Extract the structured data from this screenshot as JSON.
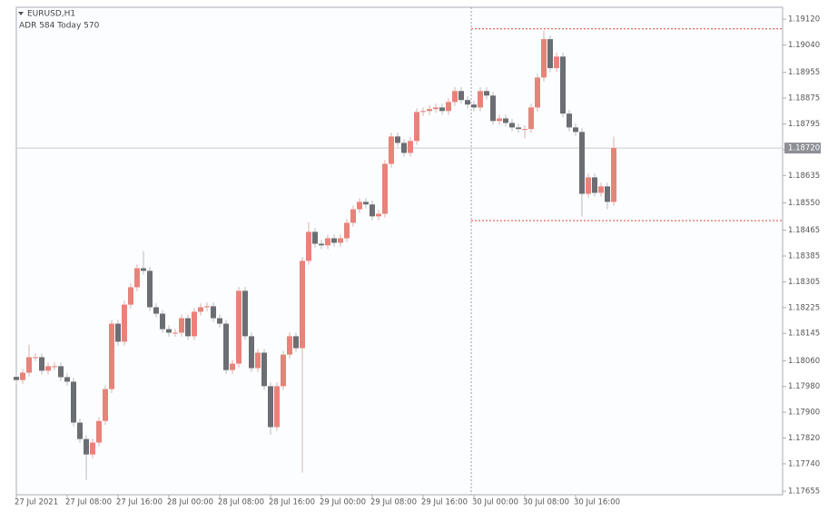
{
  "chart_data": {
    "type": "candlestick",
    "title": "EURUSD,H1",
    "subtitle": "ADR 584  Today 570",
    "categories": [
      "27 Jul 2021",
      null,
      null,
      null,
      null,
      null,
      null,
      null,
      "27 Jul 08:00",
      null,
      null,
      null,
      null,
      null,
      null,
      null,
      "27 Jul 16:00",
      null,
      null,
      null,
      null,
      null,
      null,
      null,
      "28 Jul 00:00",
      null,
      null,
      null,
      null,
      null,
      null,
      null,
      "28 Jul 08:00",
      null,
      null,
      null,
      null,
      null,
      null,
      null,
      "28 Jul 16:00",
      null,
      null,
      null,
      null,
      null,
      null,
      null,
      "29 Jul 00:00",
      null,
      null,
      null,
      null,
      null,
      null,
      null,
      "29 Jul 08:00",
      null,
      null,
      null,
      null,
      null,
      null,
      null,
      "29 Jul 16:00",
      null,
      null,
      null,
      null,
      null,
      null,
      null,
      "30 Jul 00:00",
      null,
      null,
      null,
      null,
      null,
      null,
      null,
      "30 Jul 08:00",
      null,
      null,
      null,
      null,
      null,
      null,
      null,
      "30 Jul 16:00",
      null,
      null,
      null,
      null,
      null,
      null
    ],
    "open": [
      1.1801,
      1.18,
      1.18023,
      1.18071,
      1.18071,
      1.18029,
      1.18043,
      1.18043,
      1.18009,
      1.17995,
      1.17868,
      1.17817,
      1.17769,
      1.17806,
      1.17873,
      1.17972,
      1.18175,
      1.18119,
      1.18234,
      1.18288,
      1.18347,
      1.18339,
      1.18226,
      1.18206,
      1.18158,
      1.18147,
      1.18147,
      1.18192,
      1.18136,
      1.18212,
      1.18226,
      1.18229,
      1.18192,
      1.18175,
      1.18031,
      1.18051,
      1.18277,
      1.18136,
      1.18037,
      1.18085,
      1.17981,
      1.17854,
      1.17981,
      1.18079,
      1.18136,
      1.18099,
      1.1837,
      1.1846,
      1.18423,
      1.18418,
      1.1844,
      1.18426,
      1.1844,
      1.18488,
      1.1853,
      1.18553,
      1.18545,
      1.18508,
      1.18516,
      1.18671,
      1.18756,
      1.18736,
      1.18705,
      1.18742,
      1.18832,
      1.18835,
      1.18841,
      1.18846,
      1.18835,
      1.18863,
      1.18897,
      1.18869,
      1.18855,
      1.18846,
      1.18897,
      1.18883,
      1.18804,
      1.18812,
      1.18798,
      1.18784,
      1.18779,
      1.18779,
      1.18846,
      1.18939,
      1.19058,
      1.18968,
      1.19004,
      1.18827,
      1.18784,
      1.1877,
      1.18578,
      1.18629,
      1.18581,
      1.18601,
      1.18553
    ],
    "high": [
      1.18022,
      1.18035,
      1.1811,
      1.18083,
      1.18083,
      1.18055,
      1.18055,
      1.18055,
      1.18021,
      1.18007,
      1.1788,
      1.17829,
      1.17818,
      1.17885,
      1.17984,
      1.18187,
      1.18187,
      1.18246,
      1.183,
      1.18359,
      1.184,
      1.18351,
      1.18238,
      1.18218,
      1.1817,
      1.18159,
      1.18204,
      1.18204,
      1.18224,
      1.18238,
      1.18241,
      1.18241,
      1.18204,
      1.18187,
      1.18063,
      1.18289,
      1.18289,
      1.18148,
      1.18097,
      1.18097,
      1.17993,
      1.17993,
      1.18091,
      1.18148,
      1.18148,
      1.18382,
      1.1849,
      1.18472,
      1.18435,
      1.18452,
      1.18452,
      1.18452,
      1.185,
      1.18542,
      1.18565,
      1.18565,
      1.18557,
      1.18528,
      1.18683,
      1.18768,
      1.18768,
      1.18748,
      1.18754,
      1.18844,
      1.18847,
      1.18853,
      1.18858,
      1.18858,
      1.18875,
      1.18909,
      1.18909,
      1.18881,
      1.18867,
      1.18909,
      1.18909,
      1.18895,
      1.18824,
      1.18824,
      1.1881,
      1.18796,
      1.18791,
      1.18858,
      1.18951,
      1.19085,
      1.1907,
      1.19016,
      1.19016,
      1.18839,
      1.18796,
      1.18782,
      1.18641,
      1.18641,
      1.18613,
      1.18613,
      1.18756
    ],
    "low": [
      1.17988,
      1.17988,
      1.18011,
      1.18059,
      1.18017,
      1.18017,
      1.18031,
      1.17997,
      1.17983,
      1.17856,
      1.17805,
      1.1769,
      1.17757,
      1.17794,
      1.17861,
      1.1796,
      1.18107,
      1.18107,
      1.18222,
      1.18276,
      1.18327,
      1.18214,
      1.18194,
      1.18146,
      1.18135,
      1.18135,
      1.18135,
      1.18124,
      1.18124,
      1.182,
      1.18214,
      1.1818,
      1.18163,
      1.18019,
      1.18019,
      1.18039,
      1.18124,
      1.18025,
      1.18025,
      1.17969,
      1.1783,
      1.17842,
      1.17969,
      1.18067,
      1.18087,
      1.17713,
      1.18358,
      1.18411,
      1.18406,
      1.18406,
      1.18414,
      1.18414,
      1.18428,
      1.18476,
      1.18518,
      1.18533,
      1.18496,
      1.18496,
      1.18504,
      1.18659,
      1.18724,
      1.18693,
      1.18693,
      1.1873,
      1.1882,
      1.18823,
      1.18829,
      1.18823,
      1.18823,
      1.18851,
      1.18857,
      1.18843,
      1.18834,
      1.18834,
      1.18871,
      1.18792,
      1.18792,
      1.18786,
      1.18772,
      1.18767,
      1.1875,
      1.18767,
      1.18834,
      1.18927,
      1.18956,
      1.18956,
      1.18815,
      1.18772,
      1.18758,
      1.18508,
      1.18566,
      1.18569,
      1.18569,
      1.1853,
      1.18541
    ],
    "close": [
      1.18,
      1.18023,
      1.18071,
      1.18071,
      1.18029,
      1.18043,
      1.18043,
      1.18009,
      1.17995,
      1.17868,
      1.17817,
      1.17769,
      1.17806,
      1.17873,
      1.17972,
      1.18175,
      1.18119,
      1.18234,
      1.18288,
      1.18347,
      1.18339,
      1.18226,
      1.18206,
      1.18158,
      1.18147,
      1.18147,
      1.18192,
      1.18136,
      1.18212,
      1.18226,
      1.18229,
      1.18192,
      1.18175,
      1.18031,
      1.18051,
      1.18277,
      1.18136,
      1.18037,
      1.18085,
      1.17981,
      1.17854,
      1.17981,
      1.18079,
      1.18136,
      1.18099,
      1.1837,
      1.1846,
      1.18423,
      1.18418,
      1.1844,
      1.18426,
      1.1844,
      1.18488,
      1.1853,
      1.18553,
      1.18545,
      1.18508,
      1.18516,
      1.18671,
      1.18756,
      1.18736,
      1.18705,
      1.18742,
      1.18832,
      1.18835,
      1.18841,
      1.18846,
      1.18835,
      1.18863,
      1.18897,
      1.18869,
      1.18855,
      1.18846,
      1.18897,
      1.18883,
      1.18804,
      1.18812,
      1.18798,
      1.18784,
      1.18779,
      1.18779,
      1.18846,
      1.18939,
      1.19058,
      1.18968,
      1.19004,
      1.18827,
      1.18784,
      1.1877,
      1.18578,
      1.18629,
      1.18581,
      1.18601,
      1.18553,
      1.1872
    ],
    "up_color": "#e8837a",
    "down_color": "#6b6e72",
    "ylim": [
      1.17644,
      1.19157
    ],
    "yticks": [
      {
        "value": 1.1912,
        "label": "1.19120"
      },
      {
        "value": 1.1904,
        "label": "1.19040"
      },
      {
        "value": 1.18955,
        "label": "1.18955"
      },
      {
        "value": 1.18875,
        "label": "1.18875"
      },
      {
        "value": 1.18795,
        "label": "1.18795"
      },
      {
        "value": 1.18715,
        "label": "1.18715"
      },
      {
        "value": 1.18635,
        "label": "1.18635"
      },
      {
        "value": 1.1855,
        "label": "1.18550"
      },
      {
        "value": 1.18465,
        "label": "1.18465"
      },
      {
        "value": 1.18385,
        "label": "1.18385"
      },
      {
        "value": 1.18305,
        "label": "1.18305"
      },
      {
        "value": 1.18225,
        "label": "1.18225"
      },
      {
        "value": 1.18145,
        "label": "1.18145"
      },
      {
        "value": 1.1806,
        "label": "1.18060"
      },
      {
        "value": 1.1798,
        "label": "1.17980"
      },
      {
        "value": 1.179,
        "label": "1.17900"
      },
      {
        "value": 1.1782,
        "label": "1.17820"
      },
      {
        "value": 1.1774,
        "label": "1.17740"
      },
      {
        "value": 1.17655,
        "label": "1.17655"
      }
    ],
    "last_price": {
      "value": 1.1872,
      "label": "1.18720"
    },
    "levels": [
      1.1909,
      1.18495
    ],
    "level_color": "#e0453a",
    "marker_category": "30 Jul 00:00"
  }
}
